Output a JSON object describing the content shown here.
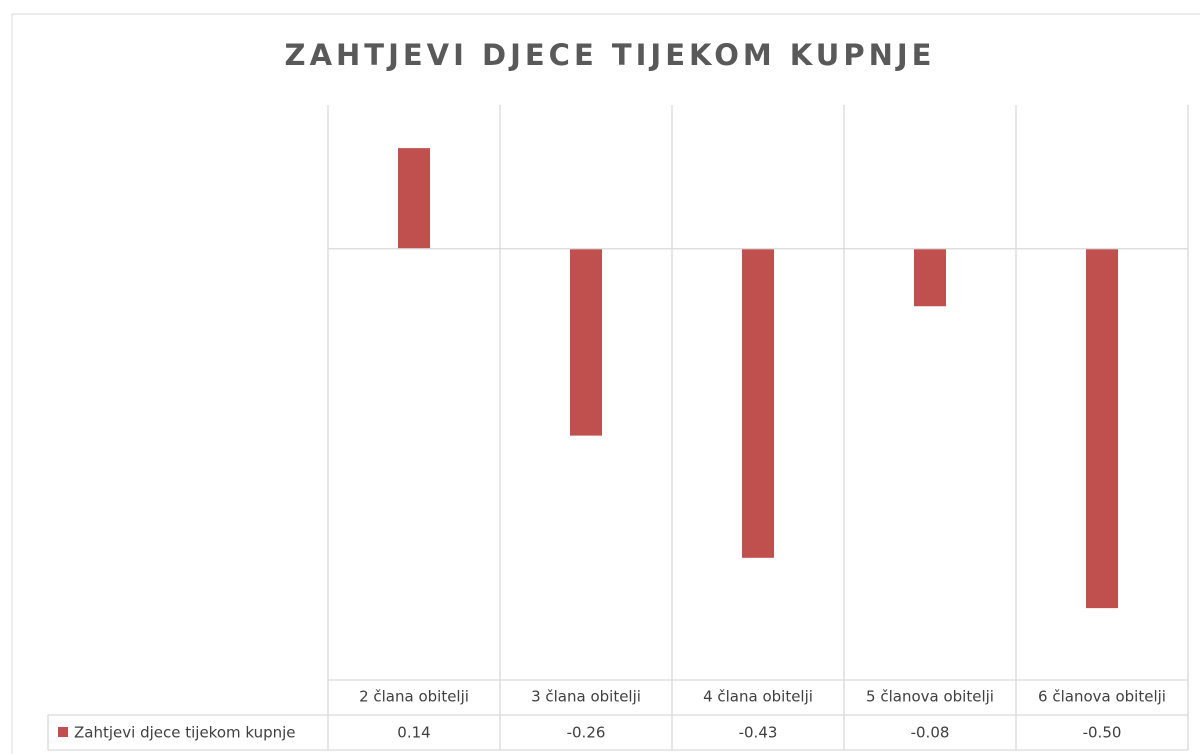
{
  "chart_data": {
    "type": "bar",
    "title": "ZAHTJEVI DJECE TIJEKOM KUPNJE",
    "categories": [
      "2 člana obitelji",
      "3 člana obitelji",
      "4 člana obitelji",
      "5 članova obitelji",
      "6 članova obitelji"
    ],
    "series": [
      {
        "name": "Zahtjevi djece tijekom kupnje",
        "color": "#c0504d",
        "values": [
          0.14,
          -0.26,
          -0.43,
          -0.08,
          -0.5
        ],
        "value_labels": [
          "0.14",
          "-0.26",
          "-0.43",
          "-0.08",
          "-0.50"
        ]
      }
    ],
    "ylim": [
      -0.6,
      0.2
    ]
  }
}
